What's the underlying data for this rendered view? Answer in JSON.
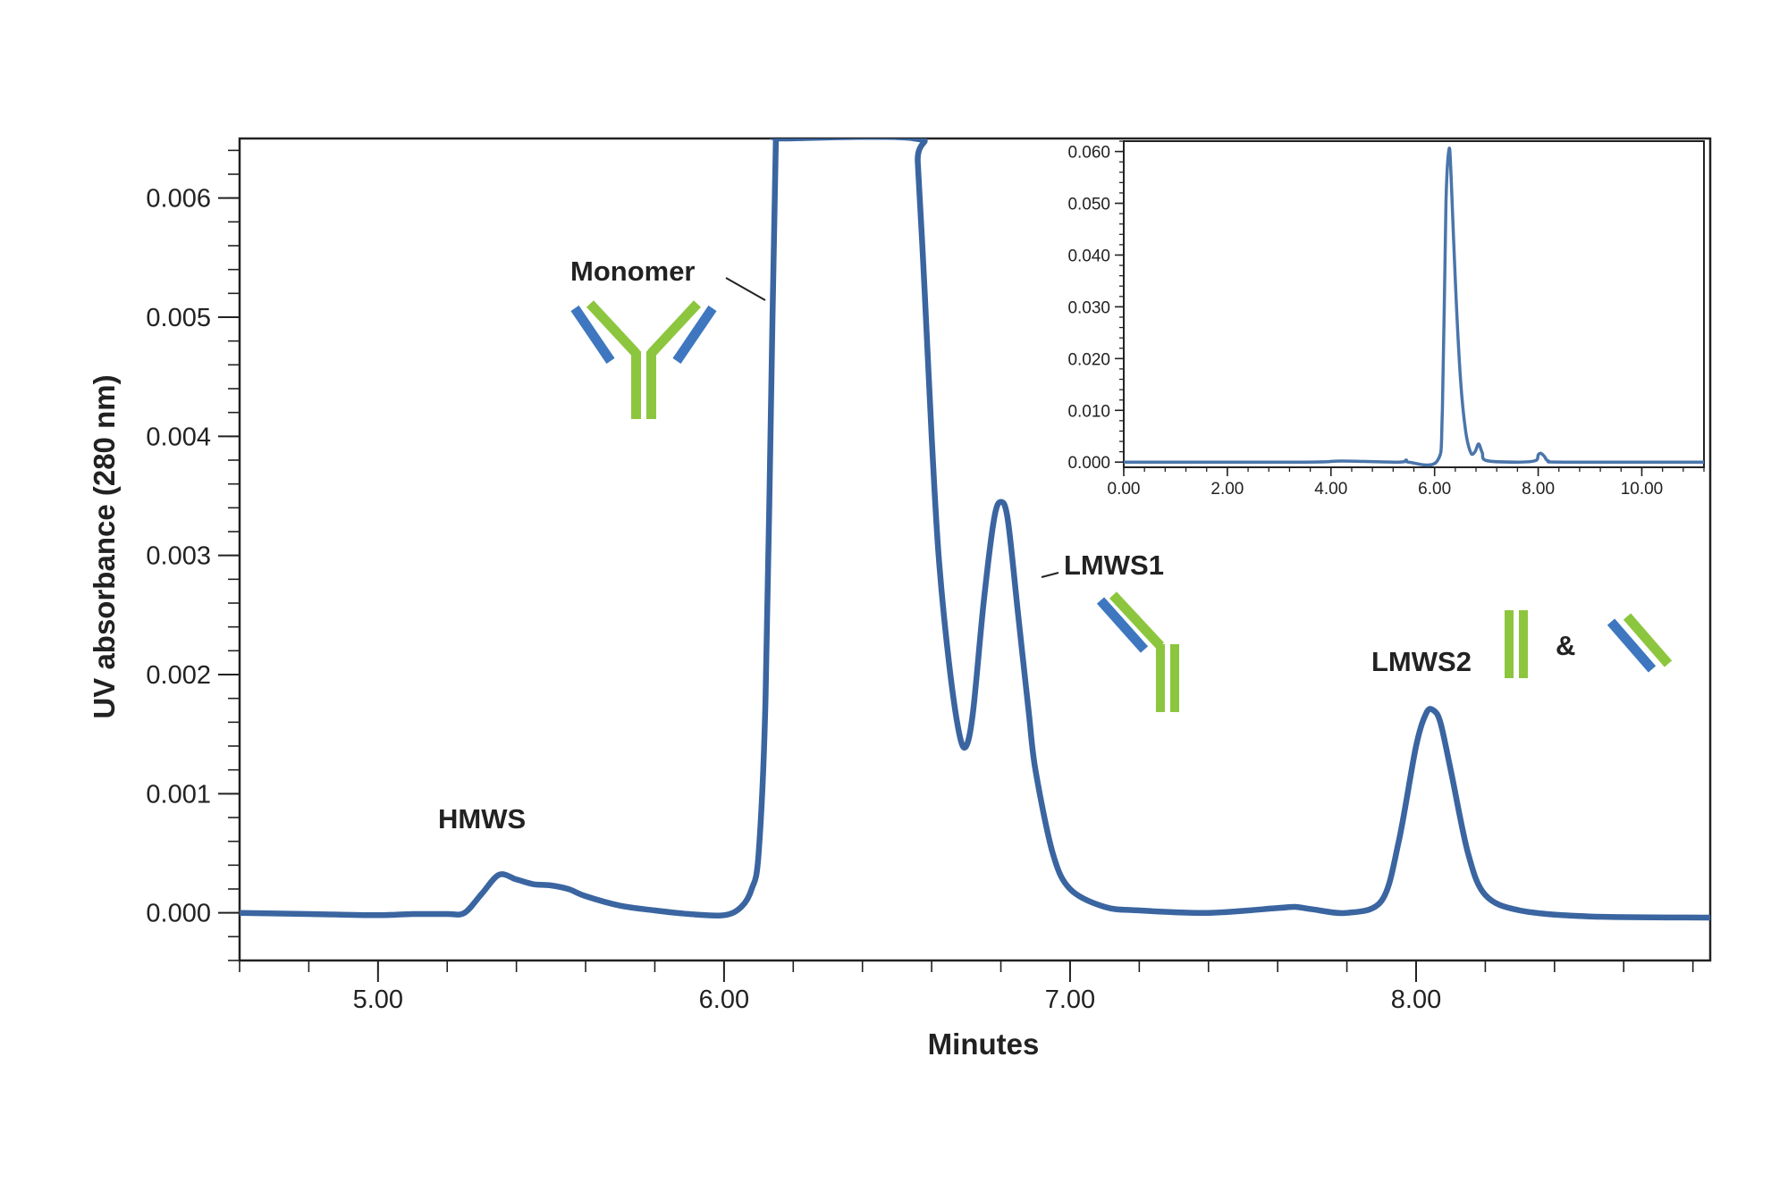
{
  "chart_data": [
    {
      "type": "line",
      "xlabel": "Minutes",
      "ylabel": "UV absorbance (280 nm)",
      "xlim": [
        4.6,
        8.85
      ],
      "ylim": [
        -0.0004,
        0.0065
      ],
      "x_ticks": [
        "5.00",
        "6.00",
        "7.00",
        "8.00"
      ],
      "y_ticks": [
        "0.000",
        "0.001",
        "0.002",
        "0.003",
        "0.004",
        "0.005",
        "0.006"
      ],
      "grid": false,
      "series": [
        {
          "color": "#3a65a0",
          "x": [
            4.6,
            4.8,
            5.0,
            5.1,
            5.2,
            5.25,
            5.3,
            5.35,
            5.4,
            5.45,
            5.5,
            5.55,
            5.6,
            5.7,
            5.8,
            5.9,
            6.0,
            6.05,
            6.08,
            6.1,
            6.12,
            6.14,
            6.15,
            6.16,
            6.55,
            6.56,
            6.58,
            6.6,
            6.62,
            6.65,
            6.68,
            6.7,
            6.72,
            6.75,
            6.78,
            6.8,
            6.82,
            6.85,
            6.88,
            6.9,
            6.95,
            7.0,
            7.1,
            7.2,
            7.4,
            7.6,
            7.65,
            7.7,
            7.8,
            7.9,
            7.95,
            8.0,
            8.03,
            8.05,
            8.07,
            8.1,
            8.15,
            8.2,
            8.3,
            8.5,
            8.85
          ],
          "y": [
            0.0,
            -1e-05,
            -2e-05,
            -1e-05,
            -1e-05,
            0.0,
            0.00016,
            0.00032,
            0.00028,
            0.00024,
            0.00023,
            0.0002,
            0.00014,
            6e-05,
            2e-05,
            -1e-05,
            -2e-05,
            5e-05,
            0.0002,
            0.0005,
            0.0018,
            0.005,
            0.0065,
            0.0065,
            0.0065,
            0.0063,
            0.0052,
            0.004,
            0.003,
            0.0021,
            0.0015,
            0.0014,
            0.0017,
            0.0026,
            0.0033,
            0.00345,
            0.0033,
            0.0025,
            0.0017,
            0.0012,
            0.0005,
            0.0002,
            5e-05,
            2e-05,
            0.0,
            4e-05,
            5e-05,
            3e-05,
            0.0,
            0.0001,
            0.0006,
            0.0014,
            0.00168,
            0.0017,
            0.0016,
            0.0012,
            0.0005,
            0.00015,
            2e-05,
            -3e-05,
            -4e-05
          ]
        }
      ],
      "annotations": [
        {
          "text": "Monomer"
        },
        {
          "text": "HMWS"
        },
        {
          "text": "LMWS1"
        },
        {
          "text": "LMWS2"
        },
        {
          "text": "&"
        }
      ]
    },
    {
      "type": "line",
      "xlim": [
        0.0,
        11.2
      ],
      "ylim": [
        -0.001,
        0.062
      ],
      "x_ticks": [
        "0.00",
        "2.00",
        "4.00",
        "6.00",
        "8.00",
        "10.00"
      ],
      "y_ticks": [
        "0.000",
        "0.010",
        "0.020",
        "0.030",
        "0.040",
        "0.050",
        "0.060"
      ],
      "grid": false,
      "series": [
        {
          "color": "#4a75aa",
          "x": [
            0.0,
            3.5,
            4.2,
            5.3,
            5.45,
            5.5,
            6.05,
            6.15,
            6.22,
            6.28,
            6.32,
            6.4,
            6.5,
            6.6,
            6.7,
            6.78,
            6.85,
            6.92,
            7.0,
            7.6,
            7.95,
            8.0,
            8.05,
            8.12,
            8.2,
            8.5,
            11.2
          ],
          "y": [
            0.0,
            0.0,
            0.0002,
            0.0,
            0.0004,
            0.0,
            0.0002,
            0.01,
            0.05,
            0.0605,
            0.055,
            0.035,
            0.016,
            0.006,
            0.0018,
            0.002,
            0.0035,
            0.0018,
            0.0003,
            0.0,
            0.0003,
            0.0014,
            0.0017,
            0.0011,
            0.0002,
            0.0,
            0.0
          ]
        }
      ]
    }
  ]
}
